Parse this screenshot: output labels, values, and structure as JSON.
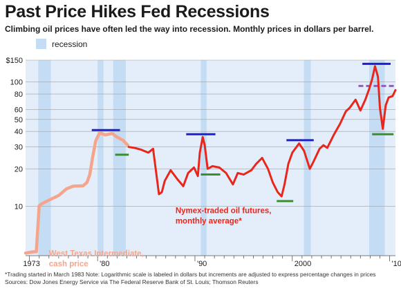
{
  "title": "Past Price Hikes Fed Recessions",
  "subtitle": "Climbing oil prices have often led the way into recession. Monthly prices in dollars per barrel.",
  "legend": {
    "recession_label": "recession"
  },
  "footnotes": {
    "note": "*Trading started in March 1983    Note: Logarithmic scale is labeled in dollars but increments are adjusted to express percentage changes in prices",
    "sources": "Sources: Dow Jones Energy Service via The Federal Reserve Bank of St. Louis; Thomson Reuters"
  },
  "colors": {
    "recession": "#c5ddf4",
    "plot_bg": "#e3eefa",
    "wti": "#f4a58c",
    "nymex": "#e8261c",
    "annotation_label": "#e8261c",
    "peak_marker": "#1e1ecf",
    "trough_marker": "#3a8f2a",
    "dashed_marker": "#a24fd6"
  },
  "chart_data": {
    "type": "line",
    "y_scale": "log",
    "ylim": [
      4,
      150
    ],
    "xlim": [
      1972.6,
      2010.6
    ],
    "yticks": [
      {
        "value": 150,
        "label": "$150"
      },
      {
        "value": 100,
        "label": "100"
      },
      {
        "value": 80,
        "label": "80"
      },
      {
        "value": 60,
        "label": "60"
      },
      {
        "value": 50,
        "label": "50"
      },
      {
        "value": 40,
        "label": "40"
      },
      {
        "value": 30,
        "label": "30"
      },
      {
        "value": 20,
        "label": "20"
      },
      {
        "value": 10,
        "label": "10"
      }
    ],
    "xticks": [
      {
        "value": 1973,
        "label": "1973"
      },
      {
        "value": 1980,
        "label": "'80"
      },
      {
        "value": 1990,
        "label": "'90"
      },
      {
        "value": 2000,
        "label": "2000"
      },
      {
        "value": 2010,
        "label": "'10"
      }
    ],
    "grid": true,
    "legend_position": "top-left",
    "recessions": [
      [
        1973.9,
        1975.2
      ],
      [
        1980.0,
        1980.6
      ],
      [
        1981.6,
        1982.9
      ],
      [
        1990.6,
        1991.2
      ],
      [
        2001.2,
        2001.9
      ],
      [
        2007.9,
        2009.5
      ]
    ],
    "series": [
      {
        "name": "West Texas Intermediate, cash price",
        "x": [
          1972.6,
          1973.4,
          1973.7,
          1974.0,
          1974.3,
          1975.0,
          1976.0,
          1976.8,
          1977.5,
          1978.5,
          1978.9,
          1979.2,
          1979.5,
          1979.8,
          1980.2,
          1980.8,
          1981.5,
          1982.0,
          1982.6,
          1983.1
        ],
        "y": [
          4.2,
          4.3,
          4.3,
          10.1,
          10.5,
          11.2,
          12.2,
          13.8,
          14.5,
          14.6,
          15.5,
          18.0,
          25.0,
          33.5,
          39.0,
          37.5,
          38.5,
          36.0,
          34.0,
          31.0
        ]
      },
      {
        "name": "Nymex-traded oil futures, monthly average*",
        "x": [
          1983.2,
          1983.8,
          1984.5,
          1985.2,
          1985.7,
          1986.0,
          1986.3,
          1986.6,
          1986.9,
          1987.5,
          1988.2,
          1988.8,
          1989.3,
          1989.9,
          1990.3,
          1990.5,
          1990.8,
          1991.0,
          1991.3,
          1991.8,
          1992.5,
          1993.2,
          1993.9,
          1994.4,
          1995.0,
          1995.8,
          1996.3,
          1996.9,
          1997.5,
          1998.0,
          1998.5,
          1998.9,
          1999.2,
          1999.6,
          2000.0,
          2000.7,
          2001.2,
          2001.8,
          2002.2,
          2002.8,
          2003.2,
          2003.6,
          2004.3,
          2004.9,
          2005.5,
          2005.9,
          2006.5,
          2007.0,
          2007.5,
          2007.9,
          2008.2,
          2008.5,
          2008.8,
          2009.0,
          2009.3,
          2009.6,
          2009.9,
          2010.3,
          2010.6
        ],
        "y": [
          30.0,
          29.5,
          28.5,
          27.0,
          29.0,
          19.0,
          12.5,
          13.0,
          16.0,
          19.5,
          16.5,
          14.5,
          18.5,
          20.5,
          17.5,
          27.0,
          36.0,
          31.0,
          20.0,
          21.0,
          20.5,
          18.5,
          15.0,
          18.5,
          18.0,
          19.5,
          22.0,
          24.5,
          20.0,
          15.5,
          13.0,
          12.0,
          15.0,
          22.0,
          27.0,
          32.0,
          28.0,
          20.0,
          23.0,
          29.0,
          31.0,
          29.5,
          38.0,
          46.0,
          58.0,
          62.0,
          72.0,
          59.0,
          72.0,
          88.0,
          105.0,
          134.0,
          110.0,
          62.0,
          42.0,
          65.0,
          75.0,
          77.0,
          86.0
        ]
      }
    ],
    "annotations": [
      {
        "text": "West Texas Intermediate,\ncash price",
        "x": 1975.0,
        "y": 4.3
      },
      {
        "text": "Nymex-traded oil futures,\nmonthly average*",
        "x": 1988.0,
        "y": 10.0
      }
    ],
    "markers": [
      {
        "kind": "peak",
        "x": [
          1979.4,
          1982.3
        ],
        "y": 41
      },
      {
        "kind": "trough",
        "x": [
          1981.8,
          1983.2
        ],
        "y": 26
      },
      {
        "kind": "peak",
        "x": [
          1989.1,
          1992.1
        ],
        "y": 38
      },
      {
        "kind": "trough",
        "x": [
          1990.6,
          1992.6
        ],
        "y": 18
      },
      {
        "kind": "peak",
        "x": [
          1999.4,
          2002.2
        ],
        "y": 34
      },
      {
        "kind": "trough",
        "x": [
          1998.4,
          2000.1
        ],
        "y": 11
      },
      {
        "kind": "peak",
        "x": [
          2007.2,
          2010.1
        ],
        "y": 140
      },
      {
        "kind": "trough",
        "x": [
          2008.2,
          2010.4
        ],
        "y": 38
      },
      {
        "kind": "dashed",
        "x": [
          2006.8,
          2010.6
        ],
        "y": 93
      }
    ]
  }
}
